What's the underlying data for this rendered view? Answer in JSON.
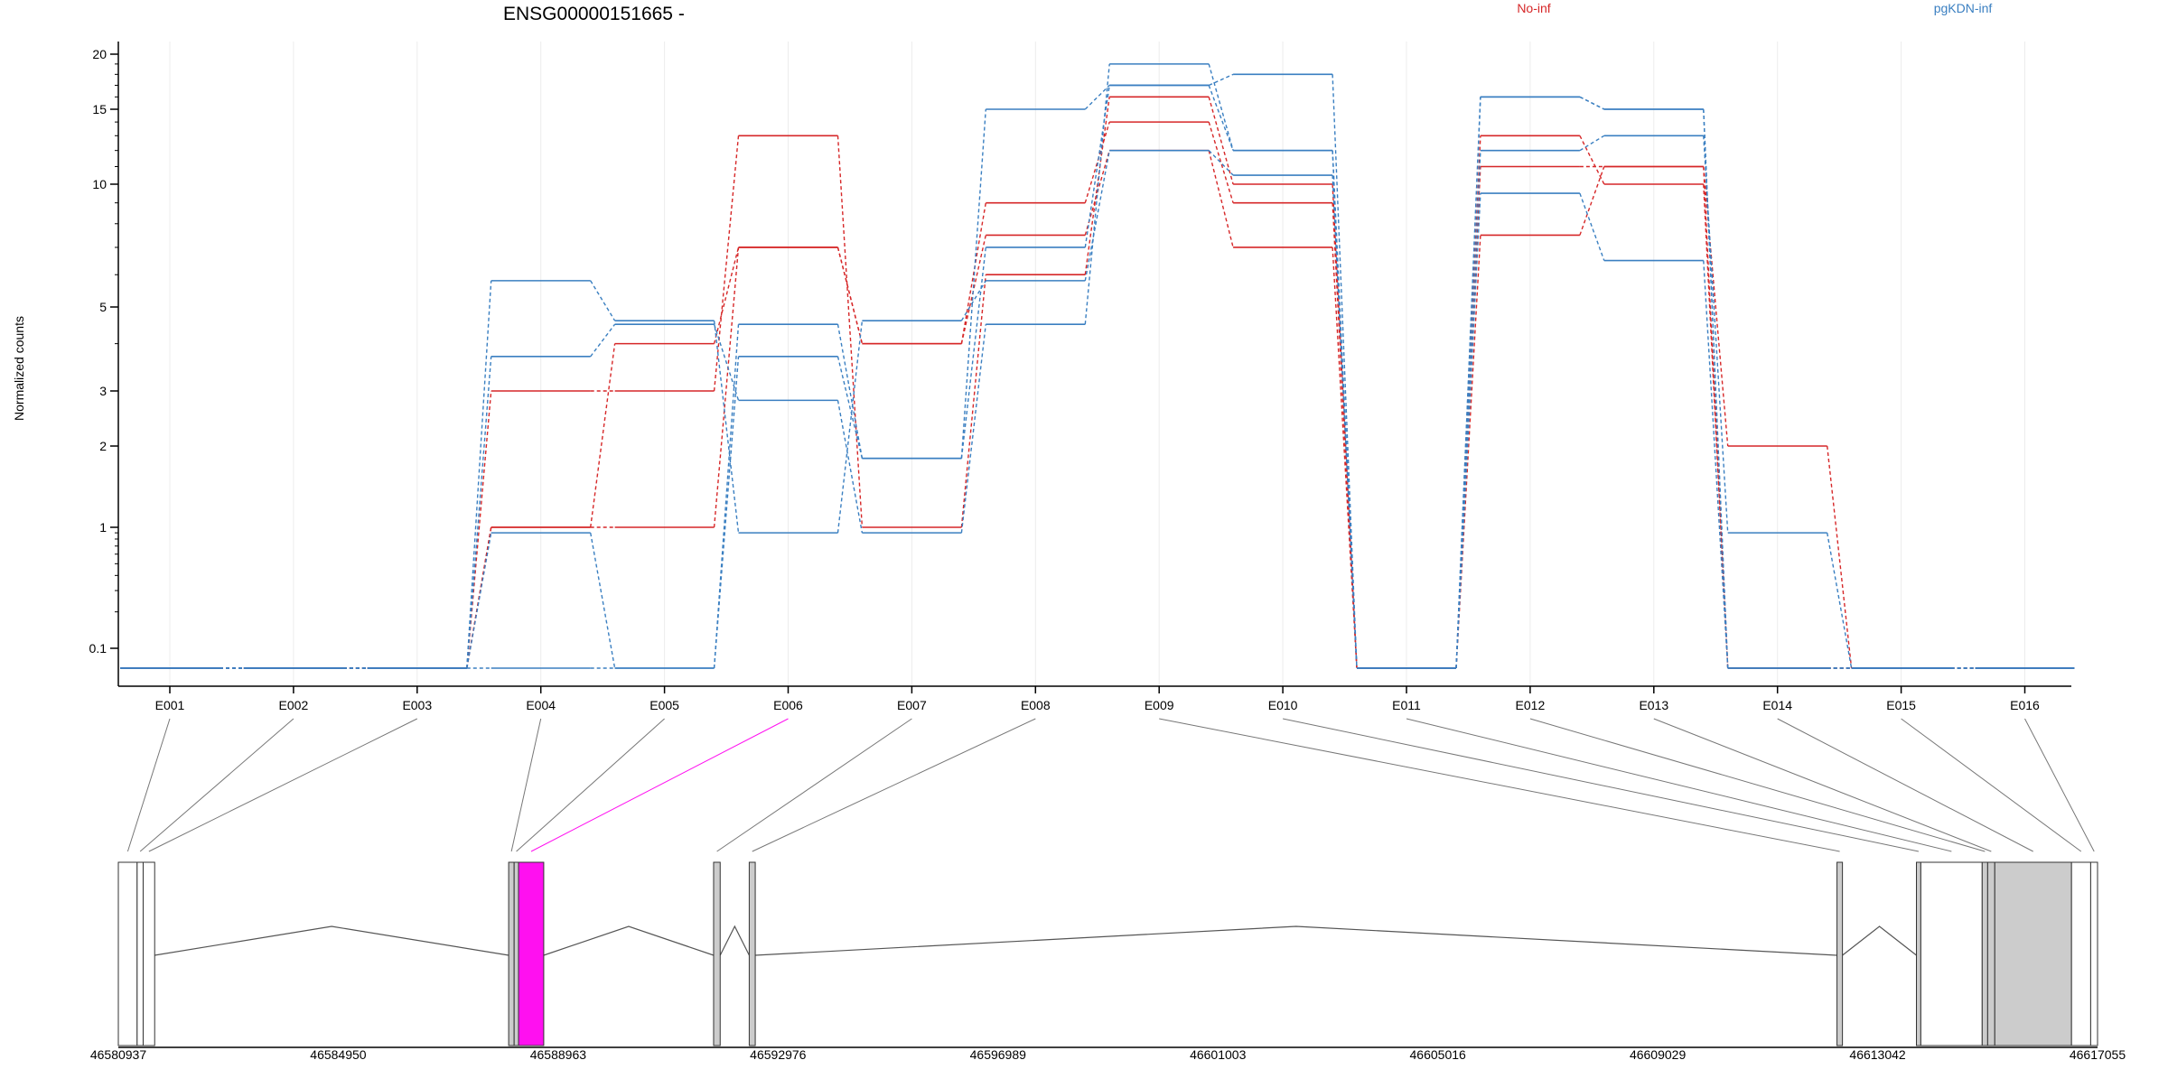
{
  "chart_data": {
    "type": "line",
    "title": "ENSG00000151665 -",
    "ylabel": "Normalized counts",
    "xlabel": "",
    "y_scale": "log",
    "y_ticks": [
      0.1,
      1,
      2,
      3,
      5,
      10,
      15,
      20
    ],
    "y_tick_labels": [
      "0.1",
      "1",
      "2",
      "3",
      "5",
      "10",
      "15",
      "20"
    ],
    "grid": "vertical lines at exon centers",
    "categories": [
      "E001",
      "E002",
      "E003",
      "E004",
      "E005",
      "E006",
      "E007",
      "E008",
      "E009",
      "E010",
      "E011",
      "E012",
      "E013",
      "E014",
      "E015",
      "E016"
    ],
    "groups": [
      {
        "name": "No-inf",
        "color": "#d62728"
      },
      {
        "name": "pgKDN-inf",
        "color": "#3a7fc1"
      }
    ],
    "legend_placement": "top",
    "series": [
      {
        "group": "No-inf",
        "values": [
          0,
          0,
          0,
          1,
          1,
          7,
          4,
          9,
          14,
          9,
          0,
          11,
          11,
          2,
          0,
          0
        ]
      },
      {
        "group": "No-inf",
        "values": [
          0,
          0,
          0,
          3,
          3,
          13,
          1,
          6,
          16,
          10,
          0,
          13,
          10,
          0,
          0,
          0
        ]
      },
      {
        "group": "No-inf",
        "values": [
          0,
          0,
          0,
          1,
          4,
          7,
          4,
          7.5,
          12,
          7,
          0,
          7.5,
          11,
          0,
          0,
          0
        ]
      },
      {
        "group": "pgKDN-inf",
        "values": [
          0,
          0,
          0,
          0.9,
          0,
          4.5,
          1.8,
          15,
          17,
          18,
          0,
          16,
          15,
          0,
          0,
          0
        ]
      },
      {
        "group": "pgKDN-inf",
        "values": [
          0,
          0,
          0,
          3.7,
          4.5,
          2.8,
          0.9,
          4.5,
          19,
          12,
          0,
          12,
          13,
          0.9,
          0,
          0
        ]
      },
      {
        "group": "pgKDN-inf",
        "values": [
          0,
          0,
          0,
          5.8,
          4.6,
          0.9,
          4.6,
          5.8,
          12,
          10.5,
          0,
          9.5,
          6.5,
          0,
          0,
          0
        ]
      },
      {
        "group": "pgKDN-inf",
        "values": [
          0,
          0,
          0,
          0,
          0,
          3.7,
          1.8,
          7,
          17,
          12,
          0,
          16,
          15,
          0,
          0,
          0
        ]
      }
    ],
    "gene_model": {
      "coordinate_labels": [
        "46580937",
        "46584950",
        "46588963",
        "46592976",
        "46596989",
        "46601003",
        "46605016",
        "46609029",
        "46613042",
        "46617055"
      ],
      "coord_start": 46580937,
      "coord_end": 46617055,
      "highlight_exon": "E006",
      "highlight_color": "#ff10f0",
      "exon_fill_gray": "#cccccc",
      "exons": [
        {
          "id": "E001",
          "start": 46580937,
          "end": 46581280,
          "fill": "white"
        },
        {
          "id": "E002",
          "start": 46581280,
          "end": 46581390,
          "fill": "white"
        },
        {
          "id": "E003",
          "start": 46581390,
          "end": 46581600,
          "fill": "white"
        },
        {
          "id": "E004",
          "start": 46588060,
          "end": 46588160,
          "fill": "gray"
        },
        {
          "id": "E005",
          "start": 46588160,
          "end": 46588240,
          "fill": "gray"
        },
        {
          "id": "E006",
          "start": 46588240,
          "end": 46588700,
          "fill": "highlight"
        },
        {
          "id": "E007",
          "start": 46591800,
          "end": 46591920,
          "fill": "gray"
        },
        {
          "id": "E008",
          "start": 46592450,
          "end": 46592560,
          "fill": "gray"
        },
        {
          "id": "E009",
          "start": 46612300,
          "end": 46612400,
          "fill": "gray"
        },
        {
          "id": "E010",
          "start": 46613750,
          "end": 46613830,
          "fill": "gray"
        },
        {
          "id": "E011",
          "start": 46613830,
          "end": 46614950,
          "fill": "white"
        },
        {
          "id": "E012",
          "start": 46614950,
          "end": 46615050,
          "fill": "gray"
        },
        {
          "id": "E013",
          "start": 46615050,
          "end": 46615180,
          "fill": "gray"
        },
        {
          "id": "E014",
          "start": 46615180,
          "end": 46616580,
          "fill": "gray"
        },
        {
          "id": "E015",
          "start": 46616580,
          "end": 46616930,
          "fill": "white"
        },
        {
          "id": "E016",
          "start": 46616930,
          "end": 46617055,
          "fill": "white"
        }
      ]
    }
  }
}
